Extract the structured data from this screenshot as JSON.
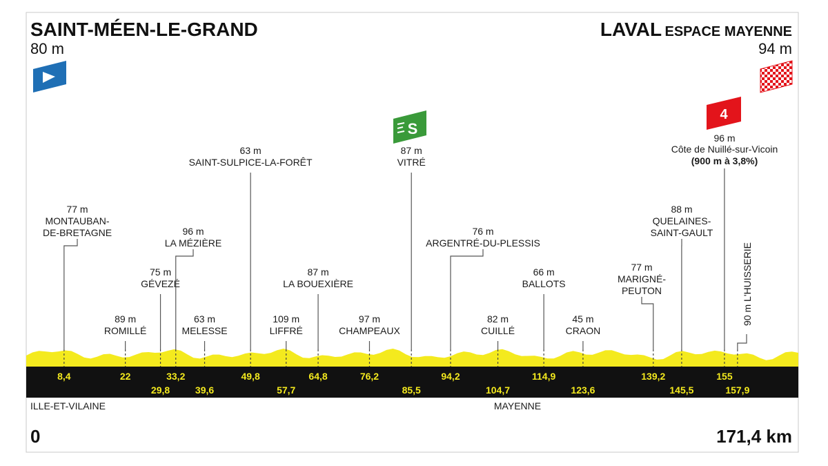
{
  "start": {
    "name": "SAINT-MÉEN-LE-GRAND",
    "elevation": "80 m"
  },
  "finish": {
    "name": "LAVAL",
    "subname": "ESPACE MAYENNE",
    "elevation": "94 m"
  },
  "sprint": {
    "icon": "sprint-flag-icon",
    "label": "S",
    "color": "#3a9a3a"
  },
  "climb": {
    "category": "4",
    "color": "#e3141b",
    "elevation": "96 m",
    "name": "Côte de Nuillé-sur-Vicoin",
    "detail": "(900 m à 3,8%)"
  },
  "total_distance": {
    "start": "0",
    "end": "171,4 km"
  },
  "regions": [
    "ILLE-ET-VILAINE",
    "MAYENNE"
  ],
  "colors": {
    "profile_fill": "#f4ea1e",
    "band": "#111111",
    "km_text": "#f4ea1e",
    "start_flag": "#1f6fb5"
  },
  "chart_data": {
    "type": "area",
    "x_unit": "km",
    "xlim": [
      0,
      171.4
    ],
    "towns": [
      {
        "name": "MONTAUBAN-DE-BRETAGNE",
        "lines": [
          "MONTAUBAN-",
          "DE-BRETAGNE"
        ],
        "altitude": "77 m",
        "km": "8,4",
        "km_value": 8.4
      },
      {
        "name": "ROMILLÉ",
        "lines": [
          "ROMILLÉ"
        ],
        "altitude": "89 m",
        "km": "22",
        "km_value": 22
      },
      {
        "name": "GÉVEZÉ",
        "lines": [
          "GÉVEZÉ"
        ],
        "altitude": "75 m",
        "km": "29,8",
        "km_value": 29.8
      },
      {
        "name": "LA MÉZIÈRE",
        "lines": [
          "LA MÉZIÈRE"
        ],
        "altitude": "96 m",
        "km": "33,2",
        "km_value": 33.2
      },
      {
        "name": "MELESSE",
        "lines": [
          "MELESSE"
        ],
        "altitude": "63 m",
        "km": "39,6",
        "km_value": 39.6
      },
      {
        "name": "SAINT-SULPICE-LA-FORÊT",
        "lines": [
          "SAINT-SULPICE-LA-FORÊT"
        ],
        "altitude": "63 m",
        "km": "49,8",
        "km_value": 49.8
      },
      {
        "name": "LIFFRÉ",
        "lines": [
          "LIFFRÉ"
        ],
        "altitude": "109 m",
        "km": "57,7",
        "km_value": 57.7
      },
      {
        "name": "LA BOUEXIÈRE",
        "lines": [
          "LA BOUEXIÈRE"
        ],
        "altitude": "87 m",
        "km": "64,8",
        "km_value": 64.8
      },
      {
        "name": "CHAMPEAUX",
        "lines": [
          "CHAMPEAUX"
        ],
        "altitude": "97 m",
        "km": "76,2",
        "km_value": 76.2
      },
      {
        "name": "VITRÉ",
        "lines": [
          "VITRÉ"
        ],
        "altitude": "87 m",
        "km": "85,5",
        "km_value": 85.5
      },
      {
        "name": "ARGENTRÉ-DU-PLESSIS",
        "lines": [
          "ARGENTRÉ-DU-PLESSIS"
        ],
        "altitude": "76 m",
        "km": "94,2",
        "km_value": 94.2
      },
      {
        "name": "CUILLÉ",
        "lines": [
          "CUILLÉ"
        ],
        "altitude": "82 m",
        "km": "104,7",
        "km_value": 104.7
      },
      {
        "name": "BALLOTS",
        "lines": [
          "BALLOTS"
        ],
        "altitude": "66 m",
        "km": "114,9",
        "km_value": 114.9
      },
      {
        "name": "CRAON",
        "lines": [
          "CRAON"
        ],
        "altitude": "45 m",
        "km": "123,6",
        "km_value": 123.6
      },
      {
        "name": "MARIGNÉ-PEUTON",
        "lines": [
          "MARIGNÉ-",
          "PEUTON"
        ],
        "altitude": "77 m",
        "km": "139,2",
        "km_value": 139.2
      },
      {
        "name": "QUELAINES-SAINT-GAULT",
        "lines": [
          "QUELAINES-",
          "SAINT-GAULT"
        ],
        "altitude": "88 m",
        "km": "145,5",
        "km_value": 145.5
      },
      {
        "name": "CÔTE DE NUILLÉ-SUR-VICOIN",
        "lines": [],
        "altitude": "",
        "km": "155",
        "km_value": 155
      },
      {
        "name": "L'HUISSERIE",
        "lines": [
          "90 m L'HUISSERIE"
        ],
        "altitude": "",
        "km": "157,9",
        "km_value": 157.9
      }
    ]
  }
}
